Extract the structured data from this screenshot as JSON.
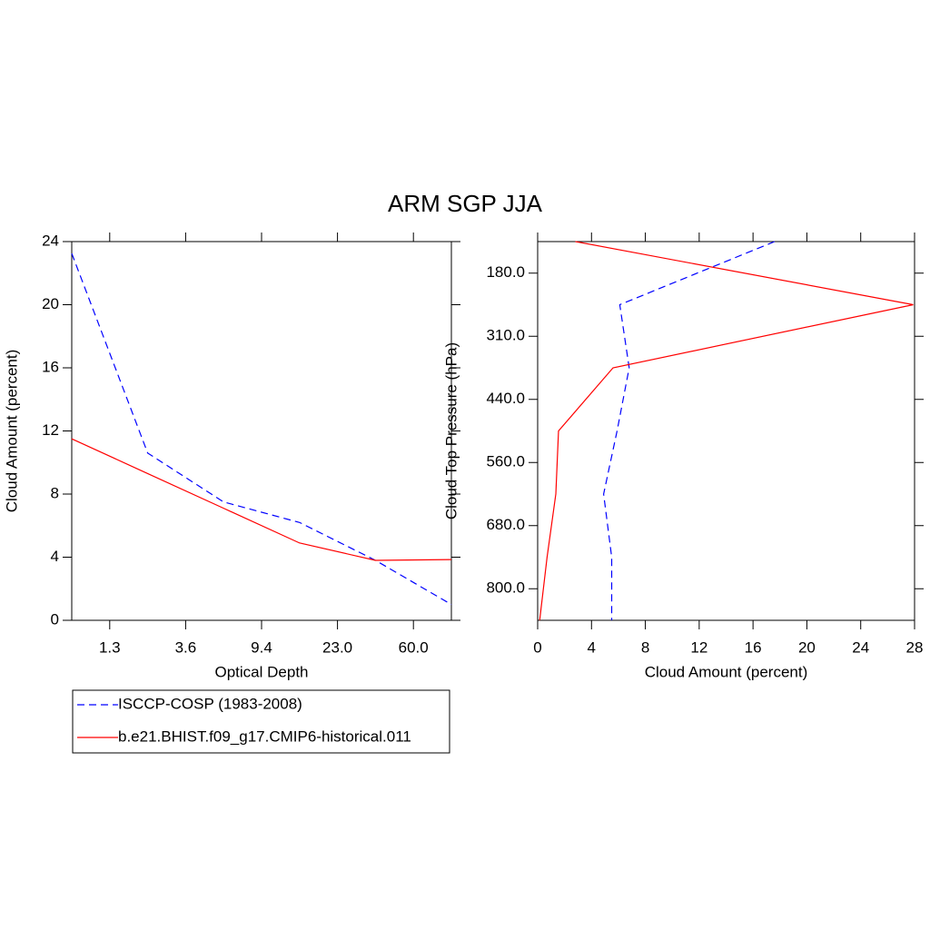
{
  "title": "ARM SGP JJA",
  "chart_data": [
    {
      "type": "line",
      "xlabel": "Optical Depth",
      "ylabel": "Cloud Amount (percent)",
      "x": [
        0,
        1,
        2,
        3,
        4,
        5
      ],
      "xlim": [
        0,
        5
      ],
      "xticks": [
        {
          "value": 0.5,
          "label": "1.3"
        },
        {
          "value": 1.5,
          "label": "3.6"
        },
        {
          "value": 2.5,
          "label": "9.4"
        },
        {
          "value": 3.5,
          "label": "23.0"
        },
        {
          "value": 4.5,
          "label": "60.0"
        }
      ],
      "ylim": [
        0,
        24
      ],
      "yticks": [
        0,
        4,
        8,
        12,
        16,
        20,
        24
      ],
      "series": [
        {
          "name": "ISCCP-COSP (1983-2008)",
          "color": "#0000ff",
          "dash": true,
          "values": [
            23.25,
            10.6,
            7.5,
            6.2,
            3.8,
            1.0
          ]
        },
        {
          "name": "b.e21.BHIST.f09_g17.CMIP6-historical.011",
          "color": "#ff0000",
          "dash": false,
          "values": [
            11.5,
            9.3,
            7.1,
            4.9,
            3.8,
            3.85
          ]
        }
      ]
    },
    {
      "type": "line",
      "orientation": "horizontal",
      "xlabel": "Cloud Amount (percent)",
      "ylabel": "Cloud Top Pressure (hPa)",
      "y": [
        0,
        1,
        2,
        3,
        4,
        5,
        6
      ],
      "ylim": [
        6,
        0
      ],
      "yticks": [
        {
          "value": 0.5,
          "label": "180.0"
        },
        {
          "value": 1.5,
          "label": "310.0"
        },
        {
          "value": 2.5,
          "label": "440.0"
        },
        {
          "value": 3.5,
          "label": "560.0"
        },
        {
          "value": 4.5,
          "label": "680.0"
        },
        {
          "value": 5.5,
          "label": "800.0"
        }
      ],
      "xlim": [
        0,
        28
      ],
      "xticks": [
        0,
        4,
        8,
        12,
        16,
        20,
        24,
        28
      ],
      "series": [
        {
          "color": "#0000ff",
          "dash": true,
          "values": [
            17.6,
            6.1,
            6.8,
            5.9,
            4.9,
            5.5,
            5.5
          ]
        },
        {
          "color": "#ff0000",
          "dash": false,
          "values": [
            2.8,
            27.9,
            5.6,
            1.55,
            1.35,
            0.7,
            0.15
          ]
        }
      ]
    }
  ]
}
